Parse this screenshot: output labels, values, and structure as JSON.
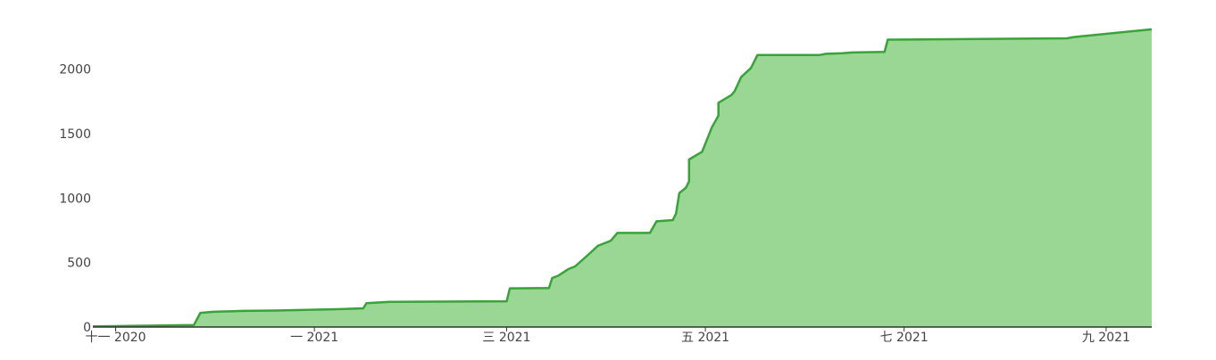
{
  "chart_data": {
    "type": "area",
    "title": "",
    "xlabel": "",
    "ylabel": "",
    "grid": false,
    "legend": "none",
    "xlim": [
      "2020-10-25",
      "2021-09-15"
    ],
    "ylim": [
      0,
      2330
    ],
    "x_ticks": [
      {
        "x": "2020-11-01",
        "label": "十一 2020"
      },
      {
        "x": "2021-01-01",
        "label": "一 2021"
      },
      {
        "x": "2021-03-01",
        "label": "三 2021"
      },
      {
        "x": "2021-05-01",
        "label": "五 2021"
      },
      {
        "x": "2021-07-01",
        "label": "七 2021"
      },
      {
        "x": "2021-09-01",
        "label": "九 2021"
      }
    ],
    "y_ticks": [
      0,
      500,
      1000,
      1500,
      2000
    ],
    "colors": {
      "line": "#3aa23a",
      "fill": "#9ad694",
      "axis": "#333333"
    },
    "series": [
      {
        "points": [
          [
            "2020-10-25",
            5
          ],
          [
            "2020-11-25",
            15
          ],
          [
            "2020-11-27",
            110
          ],
          [
            "2020-12-01",
            118
          ],
          [
            "2020-12-10",
            125
          ],
          [
            "2020-12-20",
            128
          ],
          [
            "2021-01-10",
            140
          ],
          [
            "2021-01-16",
            145
          ],
          [
            "2021-01-17",
            185
          ],
          [
            "2021-01-24",
            195
          ],
          [
            "2021-03-01",
            200
          ],
          [
            "2021-03-02",
            300
          ],
          [
            "2021-03-14",
            302
          ],
          [
            "2021-03-15",
            380
          ],
          [
            "2021-03-17",
            400
          ],
          [
            "2021-03-20",
            450
          ],
          [
            "2021-03-22",
            470
          ],
          [
            "2021-03-26",
            560
          ],
          [
            "2021-03-29",
            630
          ],
          [
            "2021-04-02",
            670
          ],
          [
            "2021-04-04",
            730
          ],
          [
            "2021-04-14",
            730
          ],
          [
            "2021-04-16",
            820
          ],
          [
            "2021-04-21",
            830
          ],
          [
            "2021-04-22",
            880
          ],
          [
            "2021-04-23",
            1040
          ],
          [
            "2021-04-25",
            1080
          ],
          [
            "2021-04-26",
            1130
          ],
          [
            "2021-04-26",
            1300
          ],
          [
            "2021-04-30",
            1360
          ],
          [
            "2021-05-03",
            1550
          ],
          [
            "2021-05-05",
            1640
          ],
          [
            "2021-05-05",
            1740
          ],
          [
            "2021-05-09",
            1800
          ],
          [
            "2021-05-10",
            1830
          ],
          [
            "2021-05-12",
            1940
          ],
          [
            "2021-05-15",
            2010
          ],
          [
            "2021-05-17",
            2110
          ],
          [
            "2021-06-05",
            2110
          ],
          [
            "2021-06-07",
            2120
          ],
          [
            "2021-06-12",
            2125
          ],
          [
            "2021-06-15",
            2130
          ],
          [
            "2021-06-25",
            2135
          ],
          [
            "2021-06-26",
            2230
          ],
          [
            "2021-08-20",
            2240
          ],
          [
            "2021-08-22",
            2250
          ],
          [
            "2021-09-15",
            2310
          ]
        ]
      }
    ]
  }
}
